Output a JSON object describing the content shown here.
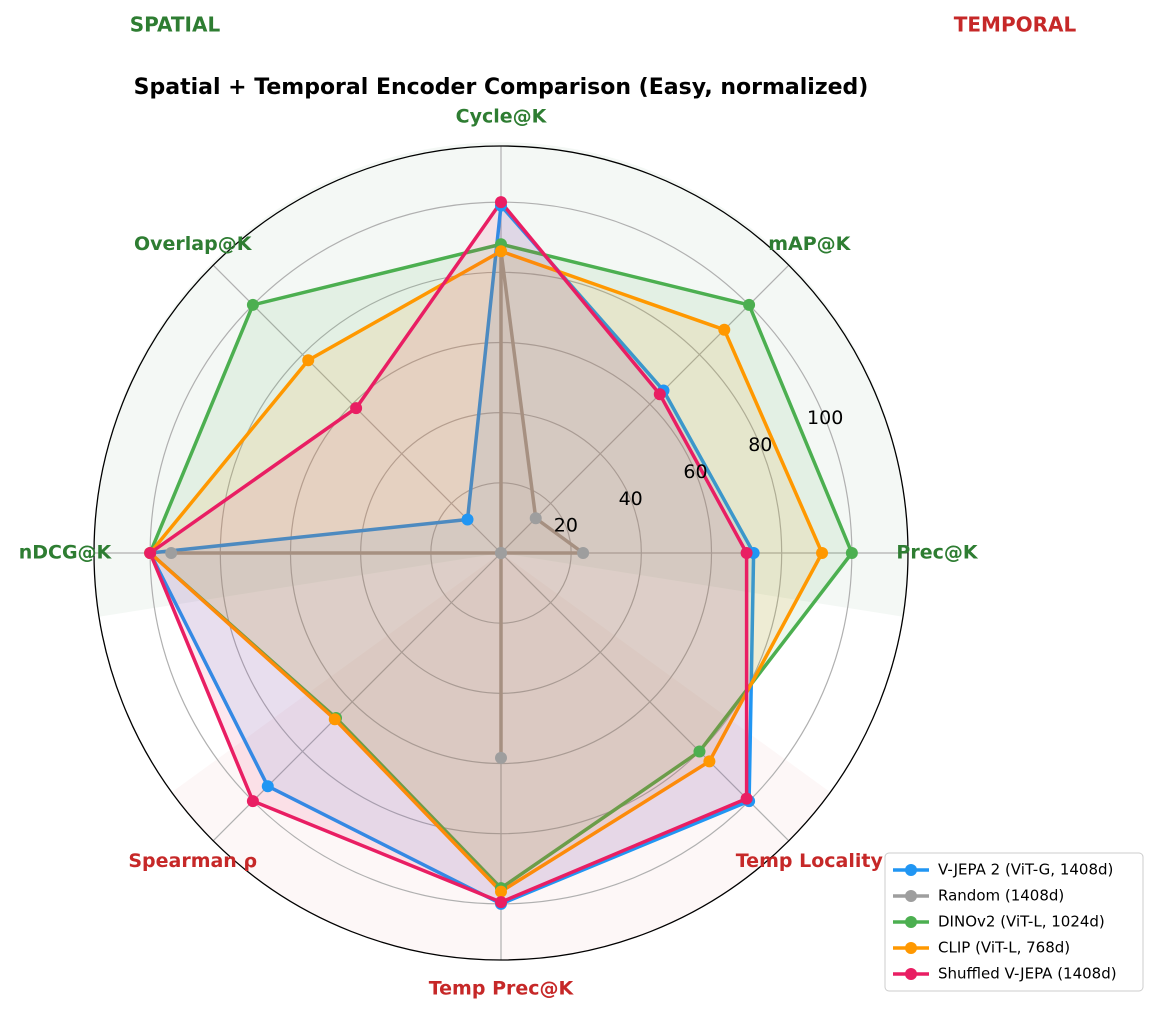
{
  "chart_data": {
    "type": "radar",
    "title": "Spatial + Temporal Encoder Comparison (Easy, normalized)",
    "group_labels": [
      {
        "text": "SPATIAL",
        "color": "#2e7d32"
      },
      {
        "text": "TEMPORAL",
        "color": "#c62828"
      }
    ],
    "categories": [
      "Prec@K",
      "mAP@K",
      "Cycle@K",
      "Overlap@K",
      "nDCG@K",
      "Spearman ρ",
      "Temp Prec@K",
      "Temp Locality"
    ],
    "category_colors": [
      "#2e7d32",
      "#2e7d32",
      "#2e7d32",
      "#2e7d32",
      "#2e7d32",
      "#c62828",
      "#c62828",
      "#c62828"
    ],
    "ylim": [
      0,
      116
    ],
    "yticks": [
      20,
      40,
      60,
      80,
      100
    ],
    "grid": true,
    "legend": "lower right",
    "series": [
      {
        "name": "V-JEPA 2 (ViT-G, 1408d)",
        "color": "#2196f3",
        "values": [
          72,
          65.5,
          99,
          13.5,
          100,
          94,
          100,
          100
        ]
      },
      {
        "name": "Random (1408d)",
        "color": "#9e9e9e",
        "values": [
          23.4,
          14,
          86,
          0,
          94,
          0,
          58.4,
          0
        ]
      },
      {
        "name": "DINOv2 (ViT-L, 1024d)",
        "color": "#4caf50",
        "values": [
          100,
          100,
          88,
          100,
          100,
          66.5,
          95.5,
          80
        ]
      },
      {
        "name": "CLIP (ViT-L, 768d)",
        "color": "#ff9800",
        "values": [
          91.5,
          90,
          86,
          77.7,
          100,
          67,
          96.5,
          84
        ]
      },
      {
        "name": "Shuffled V-JEPA (1408d)",
        "color": "#e91e63",
        "values": [
          70,
          64,
          100,
          58.4,
          100,
          100,
          99.5,
          99
        ]
      }
    ]
  }
}
